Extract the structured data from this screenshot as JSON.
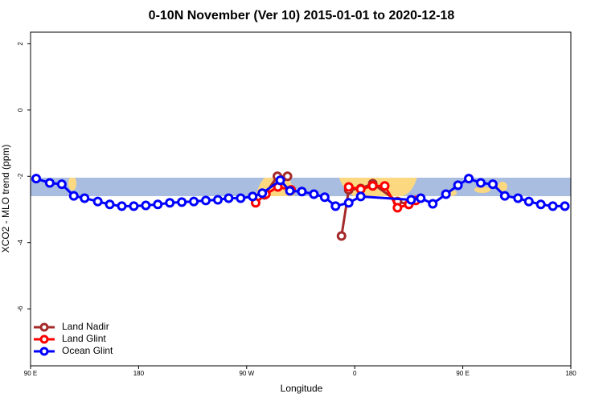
{
  "chart_data": {
    "type": "line",
    "title": "0-10N November (Ver 10)   2015-01-01 to 2020-12-18",
    "xlabel": "Longitude",
    "ylabel": "XCO2 - MLO trend (ppm)",
    "xlim": [
      90,
      540
    ],
    "ylim": [
      -7.72,
      2.35
    ],
    "xticks": [
      {
        "value": 90,
        "label": "90 E"
      },
      180,
      {
        "value": 270,
        "label": "90 W"
      },
      {
        "value": 360,
        "label": "0"
      },
      {
        "value": 450,
        "label": "90 E"
      },
      {
        "value": 540,
        "label": "180"
      }
    ],
    "yticks": [
      2,
      0,
      -2,
      -4,
      -6
    ],
    "legend": "bottom-left",
    "series": [
      {
        "name": "Land Nadir",
        "color": "#a52a2a",
        "x": [
          285,
          295.6,
          304,
          null,
          349,
          355,
          365,
          375,
          395.6,
          405
        ],
        "values": [
          -2.56,
          -2.0,
          -2.0,
          null,
          -3.8,
          -2.41,
          -2.37,
          -2.22,
          -2.76,
          -2.85
        ]
      },
      {
        "name": "Land Glint",
        "color": "#ff0000",
        "x": [
          277.5,
          286,
          296,
          307,
          null,
          355,
          365,
          375,
          385,
          395.6,
          405,
          410.8
        ],
        "values": [
          -2.8,
          -2.54,
          -2.32,
          -2.41,
          null,
          -2.32,
          -2.39,
          -2.29,
          -2.29,
          -2.95,
          -2.85,
          -2.73
        ]
      },
      {
        "name": "Ocean Glint",
        "color": "#0000ff",
        "x": [
          94.7,
          106,
          116,
          126,
          135,
          146,
          156,
          166,
          176,
          186,
          196,
          206,
          216,
          226,
          236,
          246,
          255,
          265,
          275,
          283,
          298,
          306,
          316,
          326,
          335,
          344,
          355,
          365,
          407,
          415,
          425,
          436,
          446,
          455,
          465,
          475,
          485,
          496,
          505,
          515,
          525,
          535
        ],
        "values": [
          -2.07,
          -2.2,
          -2.24,
          -2.59,
          -2.66,
          -2.76,
          -2.85,
          -2.9,
          -2.9,
          -2.88,
          -2.85,
          -2.8,
          -2.78,
          -2.76,
          -2.73,
          -2.71,
          -2.66,
          -2.66,
          -2.61,
          -2.51,
          -2.12,
          -2.44,
          -2.46,
          -2.54,
          -2.63,
          -2.9,
          -2.8,
          -2.61,
          -2.71,
          -2.66,
          -2.83,
          -2.54,
          -2.27,
          -2.07,
          -2.2,
          -2.24,
          -2.59,
          -2.66,
          -2.76,
          -2.85,
          -2.9,
          -2.9
        ]
      }
    ]
  }
}
